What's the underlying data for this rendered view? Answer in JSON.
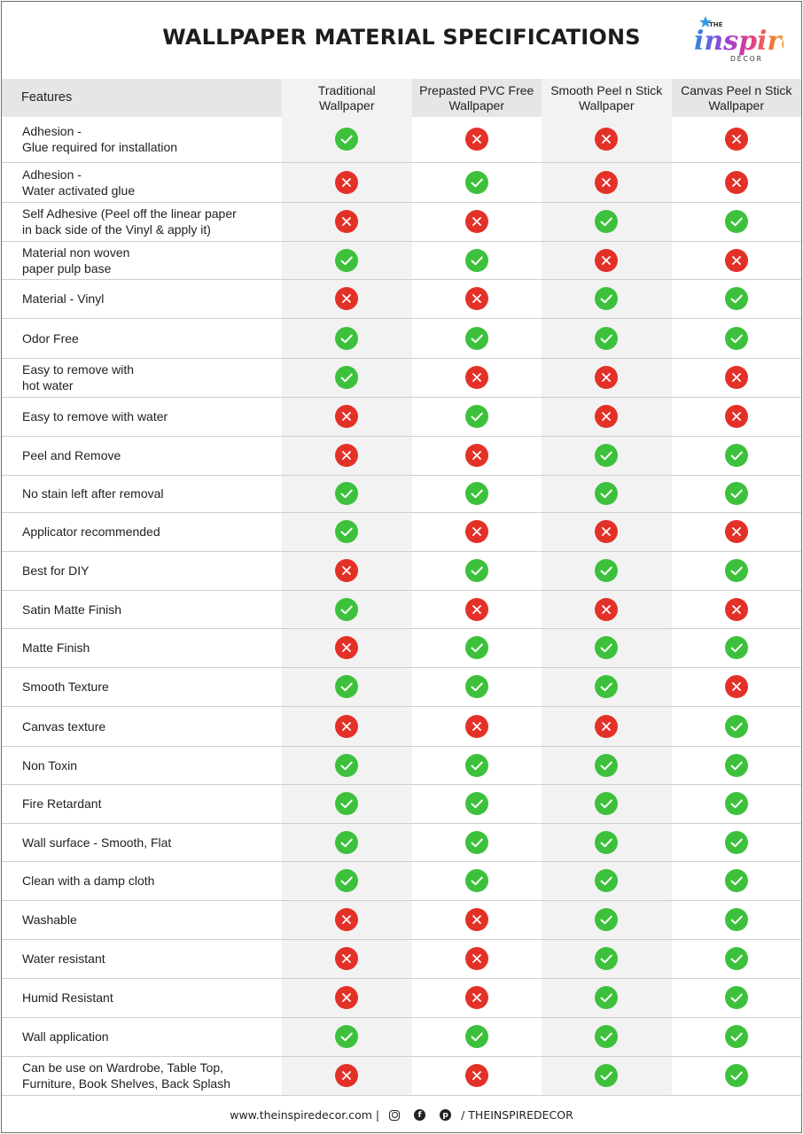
{
  "title": "WALLPAPER MATERIAL SPECIFICATIONS",
  "logo": {
    "line1": "THE",
    "line2": "inspire",
    "line3": "DÉCOR"
  },
  "columns": {
    "feature": "Features",
    "c1": [
      "Traditional",
      "Wallpaper"
    ],
    "c2": [
      "Prepasted PVC Free",
      "Wallpaper"
    ],
    "c3": [
      "Smooth Peel n Stick",
      "Wallpaper"
    ],
    "c4": [
      "Canvas Peel n Stick",
      "Wallpaper"
    ]
  },
  "rows": [
    {
      "feature": [
        "Adhesion -",
        "Glue required for installation"
      ],
      "marks": [
        true,
        false,
        false,
        false
      ]
    },
    {
      "feature": [
        "Adhesion  -",
        "Water activated glue"
      ],
      "marks": [
        false,
        true,
        false,
        false
      ]
    },
    {
      "feature": [
        "Self Adhesive (Peel off the linear paper",
        "in back side of the Vinyl & apply it)"
      ],
      "marks": [
        false,
        false,
        true,
        true
      ]
    },
    {
      "feature": [
        "Material non woven",
        "paper pulp base"
      ],
      "marks": [
        true,
        true,
        false,
        false
      ]
    },
    {
      "feature": [
        "Material - Vinyl"
      ],
      "marks": [
        false,
        false,
        true,
        true
      ]
    },
    {
      "feature": [
        "Odor Free"
      ],
      "marks": [
        true,
        true,
        true,
        true
      ]
    },
    {
      "feature": [
        "Easy to remove with",
        "hot water"
      ],
      "marks": [
        true,
        false,
        false,
        false
      ]
    },
    {
      "feature": [
        "Easy to remove with water"
      ],
      "marks": [
        false,
        true,
        false,
        false
      ]
    },
    {
      "feature": [
        "Peel and Remove"
      ],
      "marks": [
        false,
        false,
        true,
        true
      ]
    },
    {
      "feature": [
        "No stain left after removal"
      ],
      "marks": [
        true,
        true,
        true,
        true
      ]
    },
    {
      "feature": [
        "Applicator recommended"
      ],
      "marks": [
        true,
        false,
        false,
        false
      ]
    },
    {
      "feature": [
        "Best for DIY"
      ],
      "marks": [
        false,
        true,
        true,
        true
      ]
    },
    {
      "feature": [
        "Satin Matte Finish"
      ],
      "marks": [
        true,
        false,
        false,
        false
      ]
    },
    {
      "feature": [
        "Matte Finish"
      ],
      "marks": [
        false,
        true,
        true,
        true
      ]
    },
    {
      "feature": [
        "Smooth Texture"
      ],
      "marks": [
        true,
        true,
        true,
        false
      ]
    },
    {
      "feature": [
        "Canvas texture"
      ],
      "marks": [
        false,
        false,
        false,
        true
      ]
    },
    {
      "feature": [
        "Non Toxin"
      ],
      "marks": [
        true,
        true,
        true,
        true
      ]
    },
    {
      "feature": [
        "Fire Retardant"
      ],
      "marks": [
        true,
        true,
        true,
        true
      ]
    },
    {
      "feature": [
        "Wall  surface - Smooth, Flat"
      ],
      "marks": [
        true,
        true,
        true,
        true
      ]
    },
    {
      "feature": [
        "Clean with a damp cloth"
      ],
      "marks": [
        true,
        true,
        true,
        true
      ]
    },
    {
      "feature": [
        "Washable"
      ],
      "marks": [
        false,
        false,
        true,
        true
      ]
    },
    {
      "feature": [
        "Water resistant"
      ],
      "marks": [
        false,
        false,
        true,
        true
      ]
    },
    {
      "feature": [
        "Humid Resistant"
      ],
      "marks": [
        false,
        false,
        true,
        true
      ]
    },
    {
      "feature": [
        "Wall application"
      ],
      "marks": [
        true,
        true,
        true,
        true
      ]
    },
    {
      "feature": [
        "Can be use on Wardrobe, Table Top,",
        "Furniture, Book Shelves, Back Splash"
      ],
      "marks": [
        false,
        false,
        true,
        true
      ]
    }
  ],
  "footer": {
    "website": "www.theinspiredecor.com |",
    "handle": "/ THEINSPIREDECOR",
    "icons": [
      "instagram-icon",
      "facebook-icon",
      "pinterest-icon"
    ]
  },
  "colors": {
    "yes": "#3dc13c",
    "no": "#e33127",
    "header_bg": "#e6e6e6",
    "shade_bg": "#f2f2f2"
  }
}
